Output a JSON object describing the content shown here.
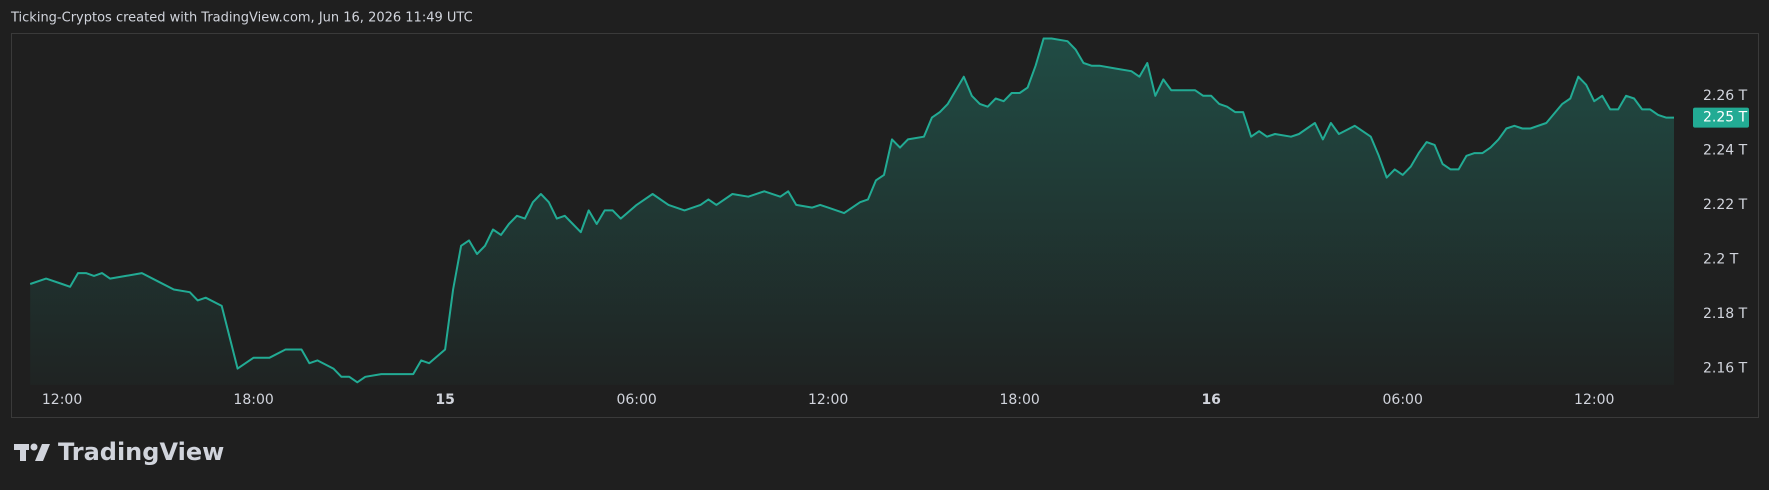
{
  "chart_data": {
    "type": "area",
    "title": "Ticking-Cryptos created with TradingView.com, Jun 16, 2026 11:49 UTC",
    "watermark": "TradingView",
    "color": "#22ab94",
    "grid": false,
    "x": [
      11,
      11.5,
      12,
      12.25,
      12.5,
      12.75,
      13,
      13.25,
      13.5,
      14,
      14.5,
      15,
      15.5,
      16,
      16.25,
      16.5,
      17,
      17.5,
      18,
      18.5,
      19,
      19.5,
      19.75,
      20,
      20.5,
      20.75,
      21,
      21.25,
      21.5,
      22,
      22.5,
      23,
      23.25,
      23.5,
      24,
      24.25,
      24.5,
      24.75,
      25,
      25.25,
      25.5,
      25.75,
      26,
      26.25,
      26.5,
      26.75,
      27,
      27.25,
      27.5,
      27.75,
      28,
      28.25,
      28.5,
      28.75,
      29,
      29.25,
      29.5,
      30,
      30.5,
      31,
      31.5,
      32,
      32.25,
      32.5,
      33,
      33.5,
      34,
      34.5,
      34.75,
      35,
      35.5,
      35.75,
      36,
      36.5,
      37,
      37.25,
      37.5,
      37.75,
      38,
      38.25,
      38.5,
      39,
      39.25,
      39.5,
      39.75,
      40,
      40.25,
      40.5,
      40.75,
      41,
      41.25,
      41.5,
      41.75,
      42,
      42.25,
      42.5,
      42.75,
      43,
      43.5,
      43.75,
      44,
      44.25,
      44.5,
      45,
      45.5,
      45.75,
      46,
      46.25,
      46.5,
      46.75,
      47.25,
      47.5,
      47.75,
      48,
      48.25,
      48.5,
      48.75,
      49,
      49.25,
      49.5,
      49.75,
      50,
      50.5,
      50.75,
      51,
      51.25,
      51.5,
      51.75,
      52,
      52.5,
      53,
      53.25,
      53.5,
      53.75,
      54,
      54.25,
      54.5,
      54.75,
      55,
      55.25,
      55.5,
      55.75,
      56,
      56.25,
      56.5,
      56.75,
      57,
      57.25,
      57.5,
      57.75,
      58,
      58.5,
      59,
      59.25,
      59.5,
      59.75,
      60,
      60.25,
      60.5,
      60.75,
      61,
      61.25,
      61.5,
      61.75,
      62,
      62.25,
      62.5
    ],
    "values": [
      2.191,
      2.193,
      2.191,
      2.19,
      2.195,
      2.195,
      2.194,
      2.195,
      2.193,
      2.194,
      2.195,
      2.192,
      2.189,
      2.188,
      2.185,
      2.186,
      2.183,
      2.16,
      2.164,
      2.164,
      2.167,
      2.167,
      2.162,
      2.163,
      2.16,
      2.157,
      2.157,
      2.155,
      2.157,
      2.158,
      2.158,
      2.158,
      2.163,
      2.162,
      2.167,
      2.189,
      2.205,
      2.207,
      2.202,
      2.205,
      2.211,
      2.209,
      2.213,
      2.216,
      2.215,
      2.221,
      2.224,
      2.221,
      2.215,
      2.216,
      2.213,
      2.21,
      2.218,
      2.213,
      2.218,
      2.218,
      2.215,
      2.22,
      2.224,
      2.22,
      2.218,
      2.22,
      2.222,
      2.22,
      2.224,
      2.223,
      2.225,
      2.223,
      2.225,
      2.22,
      2.219,
      2.22,
      2.219,
      2.217,
      2.221,
      2.222,
      2.229,
      2.231,
      2.244,
      2.241,
      2.244,
      2.245,
      2.252,
      2.254,
      2.257,
      2.262,
      2.267,
      2.26,
      2.257,
      2.256,
      2.259,
      2.258,
      2.261,
      2.261,
      2.263,
      2.271,
      2.281,
      2.281,
      2.28,
      2.277,
      2.272,
      2.271,
      2.271,
      2.27,
      2.269,
      2.267,
      2.272,
      2.26,
      2.266,
      2.262,
      2.262,
      2.262,
      2.26,
      2.26,
      2.257,
      2.256,
      2.254,
      2.254,
      2.245,
      2.247,
      2.245,
      2.246,
      2.245,
      2.246,
      2.248,
      2.25,
      2.244,
      2.25,
      2.246,
      2.249,
      2.245,
      2.238,
      2.23,
      2.233,
      2.231,
      2.234,
      2.239,
      2.243,
      2.242,
      2.235,
      2.233,
      2.233,
      2.238,
      2.239,
      2.239,
      2.241,
      2.244,
      2.248,
      2.249,
      2.248,
      2.248,
      2.25,
      2.257,
      2.259,
      2.267,
      2.264,
      2.258,
      2.26,
      2.255,
      2.255,
      2.26,
      2.259,
      2.255,
      2.255,
      2.253,
      2.252,
      2.252
    ],
    "last_label": "2.25 T",
    "xlim": [
      10.4,
      62.75
    ],
    "ylim": [
      2.154,
      2.283
    ],
    "xticks": [
      {
        "value": 12,
        "label": "12:00"
      },
      {
        "value": 18,
        "label": "18:00"
      },
      {
        "value": 24,
        "label": "15"
      },
      {
        "value": 30,
        "label": "06:00"
      },
      {
        "value": 36,
        "label": "12:00"
      },
      {
        "value": 42,
        "label": "18:00"
      },
      {
        "value": 48,
        "label": "16"
      },
      {
        "value": 54,
        "label": "06:00"
      },
      {
        "value": 60,
        "label": "12:00"
      }
    ],
    "yticks": [
      {
        "value": 2.16,
        "label": "2.16 T"
      },
      {
        "value": 2.18,
        "label": "2.18 T"
      },
      {
        "value": 2.2,
        "label": "2.2 T"
      },
      {
        "value": 2.22,
        "label": "2.22 T"
      },
      {
        "value": 2.24,
        "label": "2.24 T"
      },
      {
        "value": 2.26,
        "label": "2.26 T"
      }
    ]
  }
}
